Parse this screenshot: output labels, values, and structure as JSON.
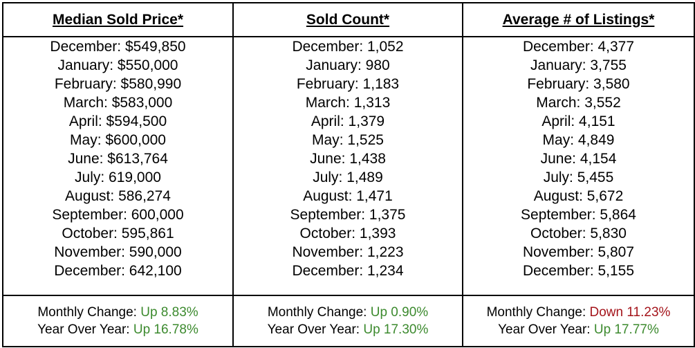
{
  "columns": [
    {
      "header": "Median Sold Price*",
      "months": [
        "December: $549,850",
        "January: $550,000",
        "February: $580,990",
        "March: $583,000",
        "April: $594,500",
        "May: $600,000",
        "June: $613,764",
        "July: 619,000",
        "August: 586,274",
        "September: 600,000",
        "October: 595,861",
        "November: 590,000",
        "December: 642,100"
      ],
      "monthly_change": {
        "label": "Monthly Change: ",
        "value": "Up 8.83%",
        "direction": "up"
      },
      "year_over_year": {
        "label": "Year Over Year: ",
        "value": "Up 16.78%",
        "direction": "up"
      }
    },
    {
      "header": "Sold Count*",
      "months": [
        "December: 1,052",
        "January: 980",
        "February: 1,183",
        "March: 1,313",
        "April: 1,379",
        "May: 1,525",
        "June: 1,438",
        "July: 1,489",
        "August: 1,471",
        "September: 1,375",
        "October: 1,393",
        "November: 1,223",
        "December: 1,234"
      ],
      "monthly_change": {
        "label": "Monthly Change: ",
        "value": "Up 0.90%",
        "direction": "up"
      },
      "year_over_year": {
        "label": "Year Over Year: ",
        "value": "Up 17.30%",
        "direction": "up"
      }
    },
    {
      "header": "Average # of Listings*",
      "months": [
        "December: 4,377",
        "January: 3,755",
        "February: 3,580",
        "March: 3,552",
        "April: 4,151",
        "May: 4,849",
        "June: 4,154",
        "July: 5,455",
        "August: 5,672",
        "September: 5,864",
        "October: 5,830",
        "November: 5,807",
        "December: 5,155"
      ],
      "monthly_change": {
        "label": "Monthly Change: ",
        "value": "Down 11.23%",
        "direction": "down"
      },
      "year_over_year": {
        "label": "Year Over Year: ",
        "value": "Up 17.77%",
        "direction": "up"
      }
    }
  ],
  "colors": {
    "up": "#3c8a2e",
    "down": "#a4141b",
    "border": "#000000"
  }
}
